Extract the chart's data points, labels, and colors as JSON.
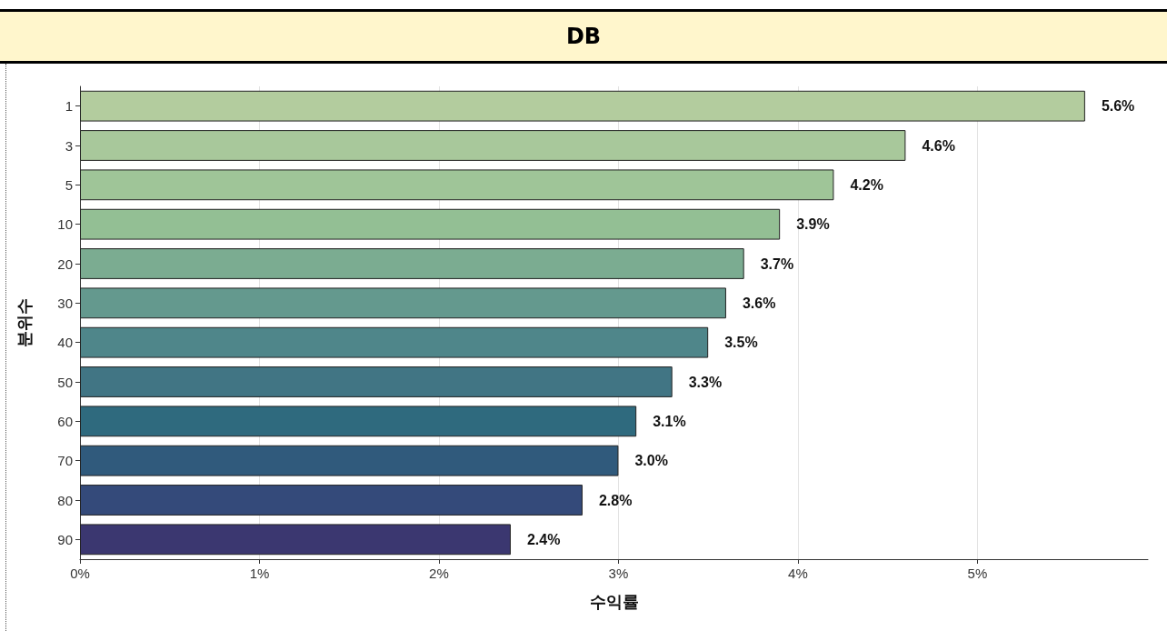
{
  "chart_data": {
    "type": "bar",
    "orientation": "horizontal",
    "title": "DB",
    "xlabel": "수익률",
    "ylabel": "분위수",
    "categories": [
      "1",
      "3",
      "5",
      "10",
      "20",
      "30",
      "40",
      "50",
      "60",
      "70",
      "80",
      "90"
    ],
    "values": [
      5.6,
      4.6,
      4.2,
      3.9,
      3.7,
      3.6,
      3.5,
      3.3,
      3.1,
      3.0,
      2.8,
      2.4
    ],
    "value_labels": [
      "5.6%",
      "4.6%",
      "4.2%",
      "3.9%",
      "3.7%",
      "3.6%",
      "3.5%",
      "3.3%",
      "3.1%",
      "3.0%",
      "2.8%",
      "2.4%"
    ],
    "colors": [
      "#b3cc9e",
      "#a8c89b",
      "#9fc598",
      "#93bf94",
      "#7bac91",
      "#64998e",
      "#4f868a",
      "#417584",
      "#2f6a7e",
      "#305a7c",
      "#344a7a",
      "#3b3770"
    ],
    "xlim": [
      0,
      5.95
    ],
    "xticks": [
      {
        "value": 0,
        "label": "0%"
      },
      {
        "value": 1,
        "label": "1%"
      },
      {
        "value": 2,
        "label": "2%"
      },
      {
        "value": 3,
        "label": "3%"
      },
      {
        "value": 4,
        "label": "4%"
      },
      {
        "value": 5,
        "label": "5%"
      }
    ],
    "grid": "x"
  }
}
